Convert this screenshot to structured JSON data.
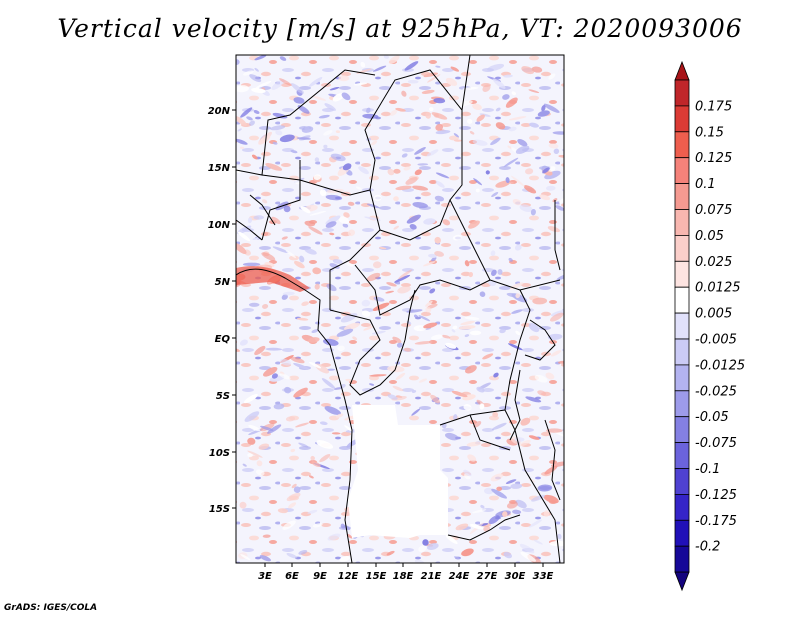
{
  "title": "Vertical velocity [m/s] at 925hPa, VT: 2020093006",
  "footer": "GrADS: IGES/COLA",
  "chart_data": {
    "type": "heatmap",
    "variable": "Vertical velocity",
    "units": "m/s",
    "level": "925hPa",
    "valid_time": "2020093006",
    "x_ticks": [
      "3E",
      "6E",
      "9E",
      "12E",
      "15E",
      "18E",
      "21E",
      "24E",
      "27E",
      "30E",
      "33E"
    ],
    "y_ticks": [
      "20N",
      "15N",
      "10N",
      "5N",
      "EQ",
      "5S",
      "10S",
      "15S"
    ],
    "lon_range": [
      0,
      35
    ],
    "lat_range": [
      -20,
      25
    ],
    "colorbar": {
      "labels": [
        "0.175",
        "0.15",
        "0.125",
        "0.1",
        "0.075",
        "0.05",
        "0.025",
        "0.0125",
        "0.005",
        "-0.005",
        "-0.0125",
        "-0.025",
        "-0.05",
        "-0.075",
        "-0.1",
        "-0.125",
        "-0.175",
        "-0.2"
      ],
      "colors": [
        "#c0262a",
        "#db3b35",
        "#ee5e4e",
        "#f5827a",
        "#f59a91",
        "#f8b7b0",
        "#fbcfca",
        "#fde4e1",
        "#ffffff",
        "#e1e1fb",
        "#cbcbf6",
        "#b3b3f0",
        "#9d9bea",
        "#8480e3",
        "#6b63dc",
        "#4f42d2",
        "#3524c8",
        "#2010b8",
        "#160898"
      ],
      "end_top": "#a81418",
      "end_bottom": "#14047e"
    }
  }
}
